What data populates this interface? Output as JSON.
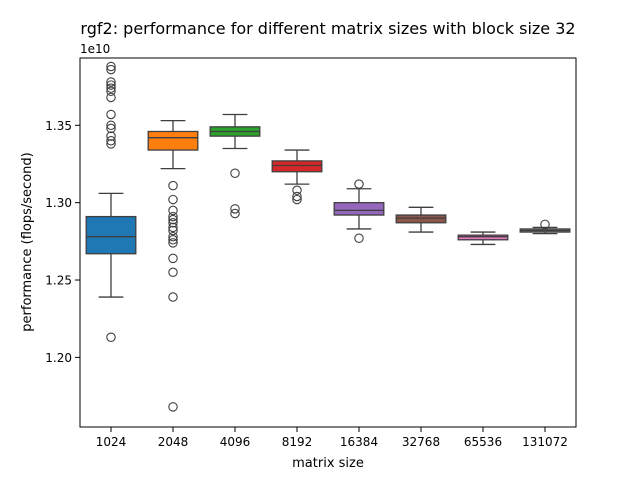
{
  "chart_data": {
    "type": "box",
    "title": "rgf2: performance for different matrix sizes with block size 32",
    "xlabel": "matrix size",
    "ylabel": "performance (flops/second)",
    "y_offset_label": "1e10",
    "y_scale": 10000000000,
    "ylim": [
      1.155,
      1.3935
    ],
    "yticks": [
      1.2,
      1.25,
      1.3,
      1.35
    ],
    "ytick_labels": [
      "1.20",
      "1.25",
      "1.30",
      "1.35"
    ],
    "categories": [
      "1024",
      "2048",
      "4096",
      "8192",
      "16384",
      "32768",
      "65536",
      "131072"
    ],
    "colors": [
      "#1f77b4",
      "#ff7f0e",
      "#2ca02c",
      "#d62728",
      "#9467bd",
      "#8c564b",
      "#e377c2",
      "#7f7f7f"
    ],
    "boxes": [
      {
        "category": "1024",
        "whisker_low": 1.239,
        "q1": 1.267,
        "median": 1.278,
        "q3": 1.291,
        "whisker_high": 1.306,
        "outliers": [
          1.213,
          1.338,
          1.34,
          1.343,
          1.348,
          1.35,
          1.357,
          1.368,
          1.372,
          1.374,
          1.376,
          1.378,
          1.386,
          1.388
        ]
      },
      {
        "category": "2048",
        "whisker_low": 1.322,
        "q1": 1.334,
        "median": 1.342,
        "q3": 1.346,
        "whisker_high": 1.353,
        "outliers": [
          1.168,
          1.239,
          1.255,
          1.264,
          1.274,
          1.276,
          1.278,
          1.282,
          1.284,
          1.287,
          1.289,
          1.291,
          1.295,
          1.302,
          1.311
        ]
      },
      {
        "category": "4096",
        "whisker_low": 1.335,
        "q1": 1.343,
        "median": 1.346,
        "q3": 1.349,
        "whisker_high": 1.357,
        "outliers": [
          1.293,
          1.296,
          1.319
        ]
      },
      {
        "category": "8192",
        "whisker_low": 1.312,
        "q1": 1.32,
        "median": 1.324,
        "q3": 1.327,
        "whisker_high": 1.334,
        "outliers": [
          1.302,
          1.304,
          1.308
        ]
      },
      {
        "category": "16384",
        "whisker_low": 1.283,
        "q1": 1.292,
        "median": 1.295,
        "q3": 1.3,
        "whisker_high": 1.309,
        "outliers": [
          1.277,
          1.312
        ]
      },
      {
        "category": "32768",
        "whisker_low": 1.281,
        "q1": 1.287,
        "median": 1.29,
        "q3": 1.292,
        "whisker_high": 1.297,
        "outliers": []
      },
      {
        "category": "65536",
        "whisker_low": 1.273,
        "q1": 1.276,
        "median": 1.278,
        "q3": 1.279,
        "whisker_high": 1.281,
        "outliers": []
      },
      {
        "category": "131072",
        "whisker_low": 1.28,
        "q1": 1.281,
        "median": 1.282,
        "q3": 1.283,
        "whisker_high": 1.284,
        "outliers": [
          1.286
        ]
      }
    ],
    "grid": false,
    "legend": "none"
  }
}
